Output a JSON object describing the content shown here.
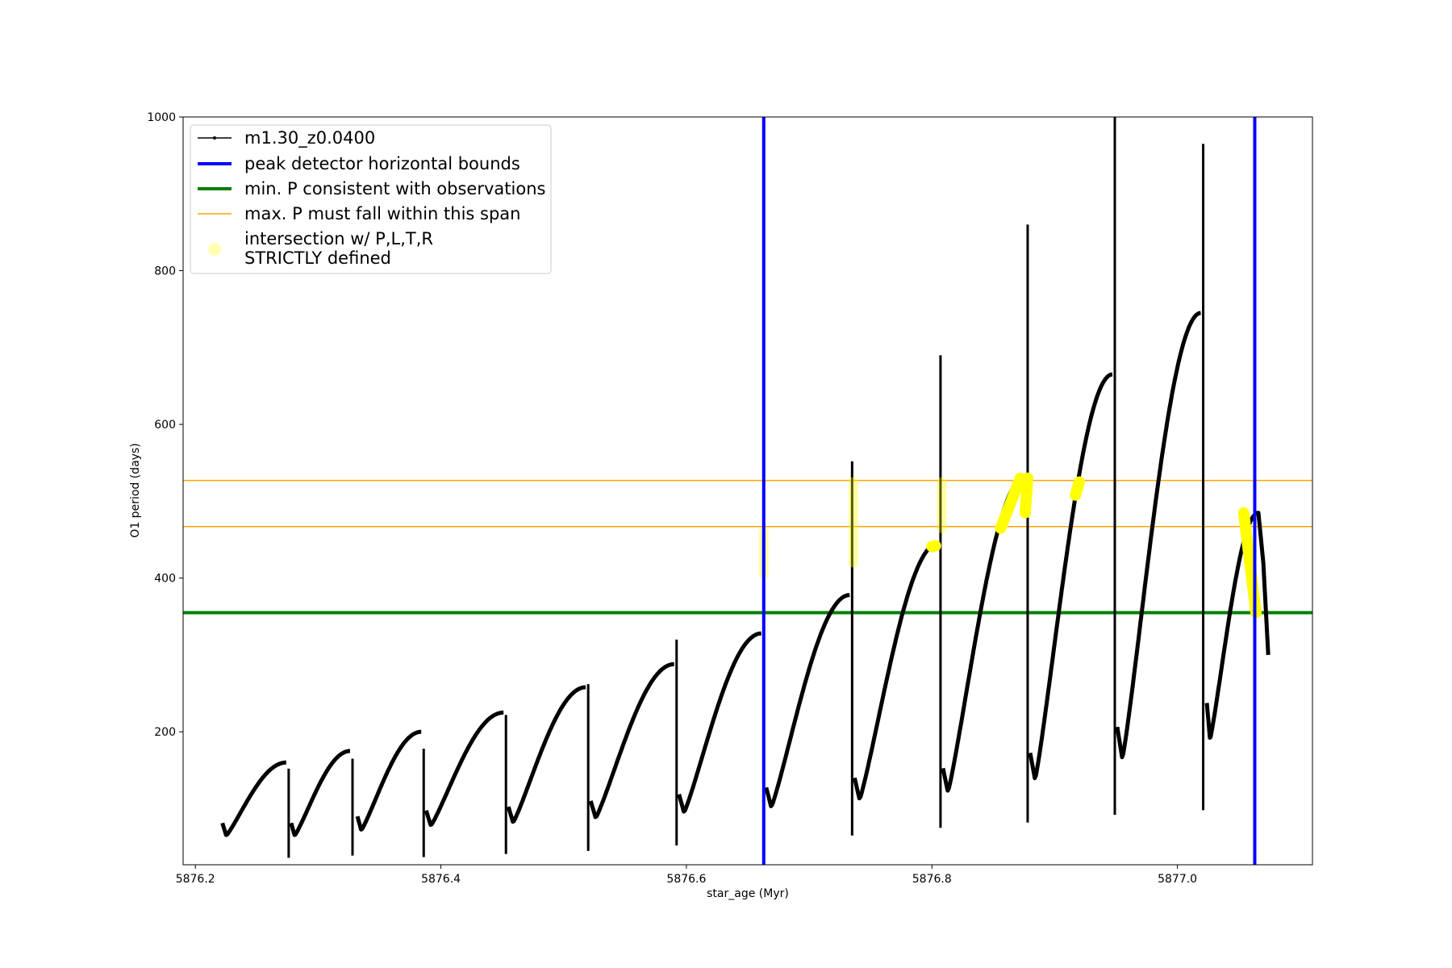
{
  "chart_data": {
    "type": "line",
    "xlabel": "star_age (Myr)",
    "ylabel": "O1 period (days)",
    "xlim": [
      5876.19,
      5877.11
    ],
    "ylim": [
      27,
      1000
    ],
    "x_ticks": [
      5876.2,
      5876.4,
      5876.6,
      5876.8,
      5877.0
    ],
    "x_tick_labels": [
      "5876.2",
      "5876.4",
      "5876.6",
      "5876.8",
      "5877.0"
    ],
    "y_ticks": [
      200,
      400,
      600,
      800,
      1000
    ],
    "y_tick_labels": [
      "200",
      "400",
      "600",
      "800",
      "1000"
    ],
    "grid": false,
    "legend_position": "top-left",
    "colors": {
      "series": "#000000",
      "peak_bounds": "#0000ff",
      "min_p": "#008000",
      "max_p_span": "#ffa500",
      "intersection": "#ffff00"
    },
    "legend": [
      {
        "label": "m1.30_z0.0400",
        "style": "line-marker"
      },
      {
        "label": "peak detector horizontal bounds",
        "style": "blue-line"
      },
      {
        "label": "min. P consistent with observations",
        "style": "green-line"
      },
      {
        "label": "max. P must fall within this span",
        "style": "orange-line"
      },
      {
        "label": "intersection w/ P,L,T,R\nSTRICTLY defined",
        "style": "yellow-dot"
      }
    ],
    "series": [
      {
        "name": "m1.30_z0.0400",
        "cycles": [
          {
            "x0": 5876.222,
            "x1": 5876.274,
            "pmin": 65,
            "pmax": 160,
            "spike_hi": 152,
            "spike_lo": 36,
            "bump": 0
          },
          {
            "x0": 5876.278,
            "x1": 5876.326,
            "pmin": 65,
            "pmax": 175,
            "spike_hi": 165,
            "spike_lo": 39,
            "bump": 0
          },
          {
            "x0": 5876.332,
            "x1": 5876.384,
            "pmin": 72,
            "pmax": 200,
            "spike_hi": 178,
            "spike_lo": 37,
            "bump": 0
          },
          {
            "x0": 5876.388,
            "x1": 5876.451,
            "pmin": 78,
            "pmax": 225,
            "spike_hi": 222,
            "spike_lo": 41,
            "bump": 0
          },
          {
            "x0": 5876.455,
            "x1": 5876.518,
            "pmin": 82,
            "pmax": 258,
            "spike_hi": 262,
            "spike_lo": 45,
            "bump": 0
          },
          {
            "x0": 5876.522,
            "x1": 5876.59,
            "pmin": 88,
            "pmax": 288,
            "spike_hi": 320,
            "spike_lo": 52,
            "bump": 0
          },
          {
            "x0": 5876.594,
            "x1": 5876.661,
            "pmin": 95,
            "pmax": 328,
            "spike_hi": 378,
            "spike_lo": 58,
            "bump": 0
          },
          {
            "x0": 5876.665,
            "x1": 5876.733,
            "pmin": 102,
            "pmax": 378,
            "spike_hi": 552,
            "spike_lo": 65,
            "bump": 0
          },
          {
            "x0": 5876.737,
            "x1": 5876.805,
            "pmin": 112,
            "pmax": 445,
            "spike_hi": 690,
            "spike_lo": 75,
            "bump": 0
          },
          {
            "x0": 5876.809,
            "x1": 5876.876,
            "pmin": 122,
            "pmax": 532,
            "spike_hi": 860,
            "spike_lo": 82,
            "bump": 0
          },
          {
            "x0": 5876.88,
            "x1": 5876.947,
            "pmin": 138,
            "pmax": 665,
            "spike_hi": 1000,
            "spike_lo": 92,
            "bump": 0
          },
          {
            "x0": 5876.951,
            "x1": 5877.019,
            "pmin": 165,
            "pmax": 745,
            "spike_hi": 965,
            "spike_lo": 98,
            "bump": 0
          },
          {
            "x0": 5877.024,
            "x1": 5877.066,
            "pmin": 190,
            "pmax": 485,
            "spike_hi": 0,
            "spike_lo": 0,
            "bump": 1
          }
        ],
        "end": {
          "x": 5877.066,
          "y": 298
        }
      }
    ],
    "hlines": {
      "min_p": 355,
      "max_p_span": [
        467,
        527
      ]
    },
    "vlines": {
      "peak_bounds": [
        5876.663,
        5877.063
      ]
    },
    "intersections": [
      {
        "x": [
          5876.663,
          5876.663
        ],
        "y": [
          405,
          460
        ],
        "faint": true
      },
      {
        "x": [
          5876.736,
          5876.736
        ],
        "y": [
          420,
          525
        ],
        "faint": true
      },
      {
        "x": [
          5876.808,
          5876.808
        ],
        "y": [
          465,
          525
        ],
        "faint": true
      },
      {
        "x": [
          5876.8,
          5876.803
        ],
        "y": [
          441,
          442
        ],
        "faint": false
      },
      {
        "x": [
          5876.856,
          5876.872
        ],
        "y": [
          465,
          530
        ],
        "faint": false
      },
      {
        "x": [
          5876.876,
          5876.878
        ],
        "y": [
          485,
          530
        ],
        "faint": false
      },
      {
        "x": [
          5876.917,
          5876.92
        ],
        "y": [
          508,
          525
        ],
        "faint": false
      },
      {
        "x": [
          5877.054,
          5877.064
        ],
        "y": [
          485,
          355
        ],
        "faint": false
      }
    ]
  }
}
